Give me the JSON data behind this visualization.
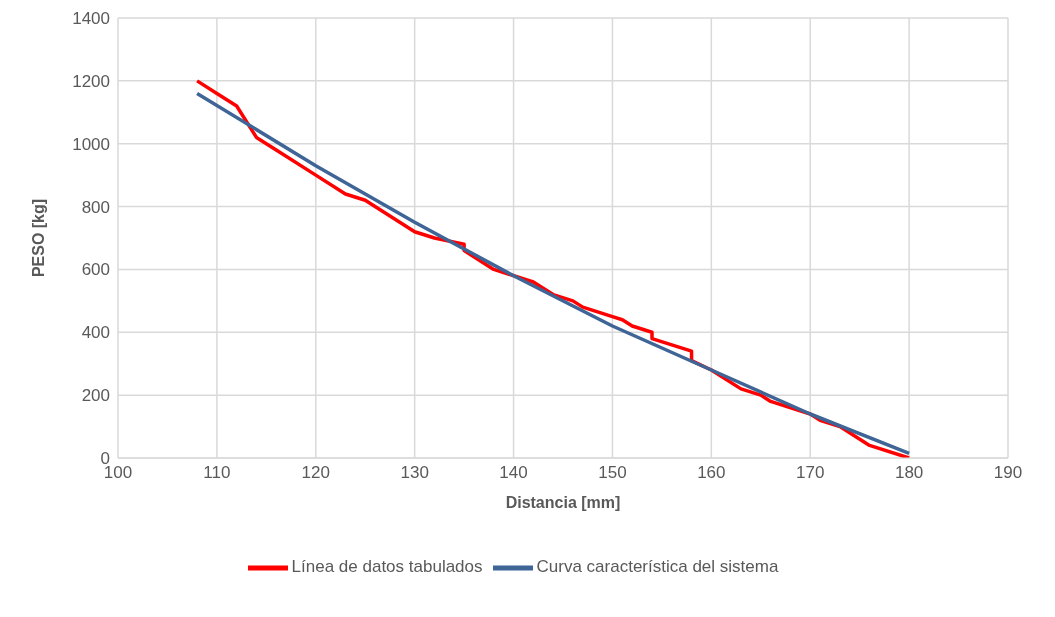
{
  "chart_data": {
    "type": "line",
    "xlabel": "Distancia [mm]",
    "ylabel": "PESO [kg]",
    "xlim": [
      100,
      190
    ],
    "xticks": [
      100,
      110,
      120,
      130,
      140,
      150,
      160,
      170,
      180,
      190
    ],
    "ylim": [
      0,
      1400
    ],
    "yticks": [
      0,
      200,
      400,
      600,
      800,
      1000,
      1200,
      1400
    ],
    "grid": true,
    "legend": "bottom",
    "marker": "none",
    "line_style": "solid",
    "series": [
      {
        "name": "Línea de datos tabulados",
        "color": "#ff0000",
        "x": [
          108,
          110,
          112,
          114,
          116,
          120,
          123,
          125,
          130,
          132,
          135,
          135,
          138,
          142,
          144,
          146,
          147,
          150,
          151,
          152,
          154,
          154,
          158,
          158,
          160,
          163,
          165,
          166,
          170,
          171,
          173,
          176,
          180
        ],
        "values": [
          1200,
          1160,
          1120,
          1020,
          980,
          900,
          840,
          820,
          720,
          700,
          680,
          660,
          600,
          560,
          520,
          500,
          480,
          450,
          440,
          420,
          400,
          380,
          340,
          310,
          280,
          220,
          200,
          180,
          140,
          120,
          100,
          40,
          0
        ]
      },
      {
        "name": "Curva característica del sistema",
        "color": "#3f6496",
        "x": [
          108,
          120,
          130,
          140,
          150,
          160,
          170,
          180
        ],
        "values": [
          1160,
          930,
          750,
          580,
          420,
          280,
          140,
          15
        ]
      }
    ]
  }
}
